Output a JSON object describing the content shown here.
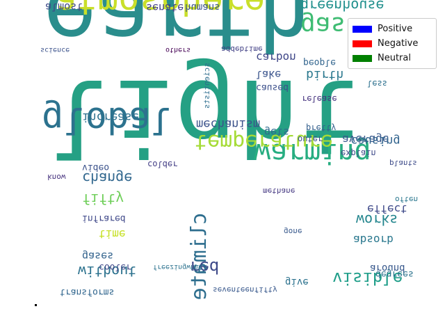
{
  "chart_data": {
    "type": "wordcloud",
    "rendering": "vertically mirrored text",
    "legend": {
      "placement": "top-right",
      "entries": [
        {
          "label": "Positive",
          "color": "#0000ff"
        },
        {
          "label": "Negative",
          "color": "#ff0000"
        },
        {
          "label": "Neutral",
          "color": "#008000"
        }
      ]
    },
    "words": [
      {
        "text": "earth",
        "color": "#2a8d8c",
        "weight": 100
      },
      {
        "text": "light",
        "color": "#25a084",
        "weight": 100
      },
      {
        "text": "atmosphere",
        "color": "#c9df2a",
        "weight": 55
      },
      {
        "text": "global",
        "color": "#2c728e",
        "weight": 55
      },
      {
        "text": "warming",
        "color": "#27ad81",
        "weight": 40
      },
      {
        "text": "temperature",
        "color": "#a5db36",
        "weight": 35
      },
      {
        "text": "climate",
        "color": "#2e6e8e",
        "weight": 30
      },
      {
        "text": "gas",
        "color": "#3fbc73",
        "weight": 38
      },
      {
        "text": "change",
        "color": "#31678e",
        "weight": 22
      },
      {
        "text": "visible",
        "color": "#1f9e89",
        "weight": 22
      },
      {
        "text": "mechanism",
        "color": "#3b528b",
        "weight": 16
      },
      {
        "text": "increase",
        "color": "#2d708e",
        "weight": 16
      },
      {
        "text": "greenhouse",
        "color": "#21908d",
        "weight": 20
      },
      {
        "text": "birth",
        "color": "#2a788e",
        "weight": 16
      },
      {
        "text": "red",
        "color": "#3e4a89",
        "weight": 22
      },
      {
        "text": "fifty",
        "color": "#6ece58",
        "weight": 18
      },
      {
        "text": "without",
        "color": "#2c728e",
        "weight": 18
      },
      {
        "text": "works",
        "color": "#24868e",
        "weight": 18
      },
      {
        "text": "effect",
        "color": "#3e4989",
        "weight": 16
      },
      {
        "text": "absorb",
        "color": "#2a788e",
        "weight": 16
      },
      {
        "text": "average",
        "color": "#38588c",
        "weight": 15
      },
      {
        "text": "causing",
        "color": "#32648e",
        "weight": 15
      },
      {
        "text": "carbon",
        "color": "#3f4788",
        "weight": 14
      },
      {
        "text": "lake",
        "color": "#3a548c",
        "weight": 14
      },
      {
        "text": "gets",
        "color": "#2f6b8e",
        "weight": 14
      },
      {
        "text": "people",
        "color": "#32658e",
        "weight": 12
      },
      {
        "text": "senate",
        "color": "#424086",
        "weight": 13
      },
      {
        "text": "almost",
        "color": "#3e4989",
        "weight": 14
      },
      {
        "text": "humans",
        "color": "#3b528b",
        "weight": 12
      },
      {
        "text": "time",
        "color": "#c5e021",
        "weight": 14
      },
      {
        "text": "gases",
        "color": "#33638d",
        "weight": 13
      },
      {
        "text": "around",
        "color": "#38588c",
        "weight": 12
      },
      {
        "text": "transforms",
        "color": "#31668e",
        "weight": 12
      },
      {
        "text": "give",
        "color": "#2c728e",
        "weight": 12
      },
      {
        "text": "cooler",
        "color": "#3f4788",
        "weight": 11
      },
      {
        "text": "video",
        "color": "#3b528b",
        "weight": 11
      },
      {
        "text": "colder",
        "color": "#433e85",
        "weight": 10
      },
      {
        "text": "infrared",
        "color": "#3f4889",
        "weight": 11
      },
      {
        "text": "release",
        "color": "#46337f",
        "weight": 10
      },
      {
        "text": "caused",
        "color": "#3c508b",
        "weight": 11
      },
      {
        "text": "degrees",
        "color": "#2c738e",
        "weight": 11
      },
      {
        "text": "explain",
        "color": "#3e4a89",
        "weight": 10
      },
      {
        "text": "methane",
        "color": "#453882",
        "weight": 9
      },
      {
        "text": "outer",
        "color": "#3b528b",
        "weight": 10
      },
      {
        "text": "pretty",
        "color": "#34608d",
        "weight": 10
      },
      {
        "text": "less",
        "color": "#2d708e",
        "weight": 10
      },
      {
        "text": "often",
        "color": "#2a778e",
        "weight": 9
      },
      {
        "text": "know",
        "color": "#46327e",
        "weight": 9
      },
      {
        "text": "scientists",
        "color": "#2e6e8e",
        "weight": 9
      },
      {
        "text": "plants",
        "color": "#3e4c8a",
        "weight": 9
      },
      {
        "text": "gone",
        "color": "#38598c",
        "weight": 9
      },
      {
        "text": "science",
        "color": "#3b528b",
        "weight": 8
      },
      {
        "text": "addebtime",
        "color": "#424186",
        "weight": 9
      },
      {
        "text": "others",
        "color": "#440154",
        "weight": 8
      },
      {
        "text": "seventeenfifty",
        "color": "#38588c",
        "weight": 8
      },
      {
        "text": "freezingwhite",
        "color": "#2c728e",
        "weight": 8
      }
    ]
  }
}
